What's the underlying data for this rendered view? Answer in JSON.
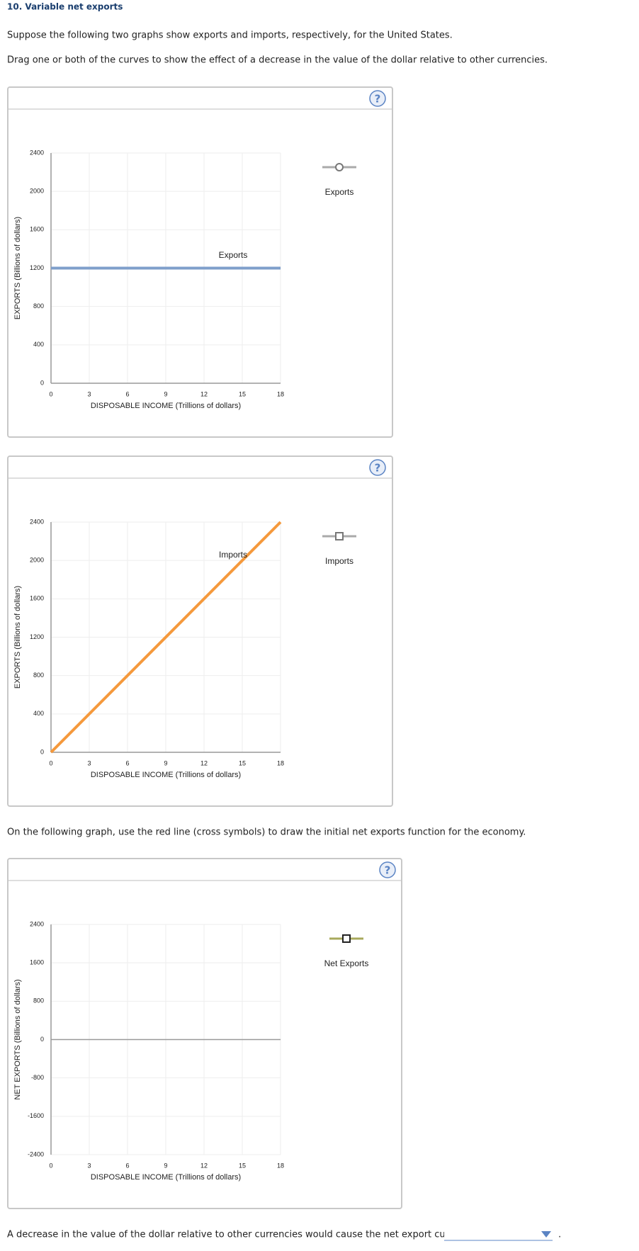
{
  "question": {
    "title": "10. Variable net exports",
    "instructions": [
      "Suppose the following two graphs show exports and imports, respectively, for the United States.",
      "Drag one or both of the curves to show the effect of a decrease in the value of the dollar relative to other currencies."
    ],
    "net_exports_instruction": "On the following graph, use the red line (cross symbols) to draw the initial net exports function for the economy.",
    "answer_prompt": "A decrease in the value of the dollar relative to other currencies would cause the net export curve to",
    "answer_end": ".",
    "help_button": "?"
  },
  "chart_data": [
    {
      "type": "line",
      "x_label": "DISPOSABLE INCOME (Trillions of dollars)",
      "y_label": "EXPORTS (Billions of dollars)",
      "xlim": [
        0,
        18
      ],
      "xticks": [
        0,
        3,
        6,
        9,
        12,
        15,
        18
      ],
      "ylim": [
        0,
        2400
      ],
      "yticks": [
        0,
        400,
        800,
        1200,
        1600,
        2000,
        2400
      ],
      "grid": true,
      "series": [
        {
          "name": "Exports",
          "color": "#7f9fcb",
          "marker": "circle",
          "x": [
            0,
            18
          ],
          "values": [
            1200,
            1200
          ]
        }
      ]
    },
    {
      "type": "line",
      "x_label": "DISPOSABLE INCOME (Trillions of dollars)",
      "y_label": "EXPORTS (Billions of dollars)",
      "xlim": [
        0,
        18
      ],
      "xticks": [
        0,
        3,
        6,
        9,
        12,
        15,
        18
      ],
      "ylim": [
        0,
        2400
      ],
      "yticks": [
        0,
        400,
        800,
        1200,
        1600,
        2000,
        2400
      ],
      "grid": true,
      "series": [
        {
          "name": "Imports",
          "color": "#f5993c",
          "marker": "square",
          "x": [
            0,
            18
          ],
          "values": [
            0,
            2400
          ]
        }
      ]
    },
    {
      "type": "line",
      "x_label": "DISPOSABLE INCOME (Trillions of dollars)",
      "y_label": "NET EXPORTS (Billions of dollars)",
      "xlim": [
        0,
        18
      ],
      "xticks": [
        0,
        3,
        6,
        9,
        12,
        15,
        18
      ],
      "ylim": [
        -2400,
        2400
      ],
      "yticks": [
        -2400,
        -1600,
        -800,
        0,
        800,
        1600,
        2400
      ],
      "grid": true,
      "series": [
        {
          "name": "Net Exports",
          "color": "#a8aa5c",
          "marker": "square"
        }
      ]
    }
  ]
}
